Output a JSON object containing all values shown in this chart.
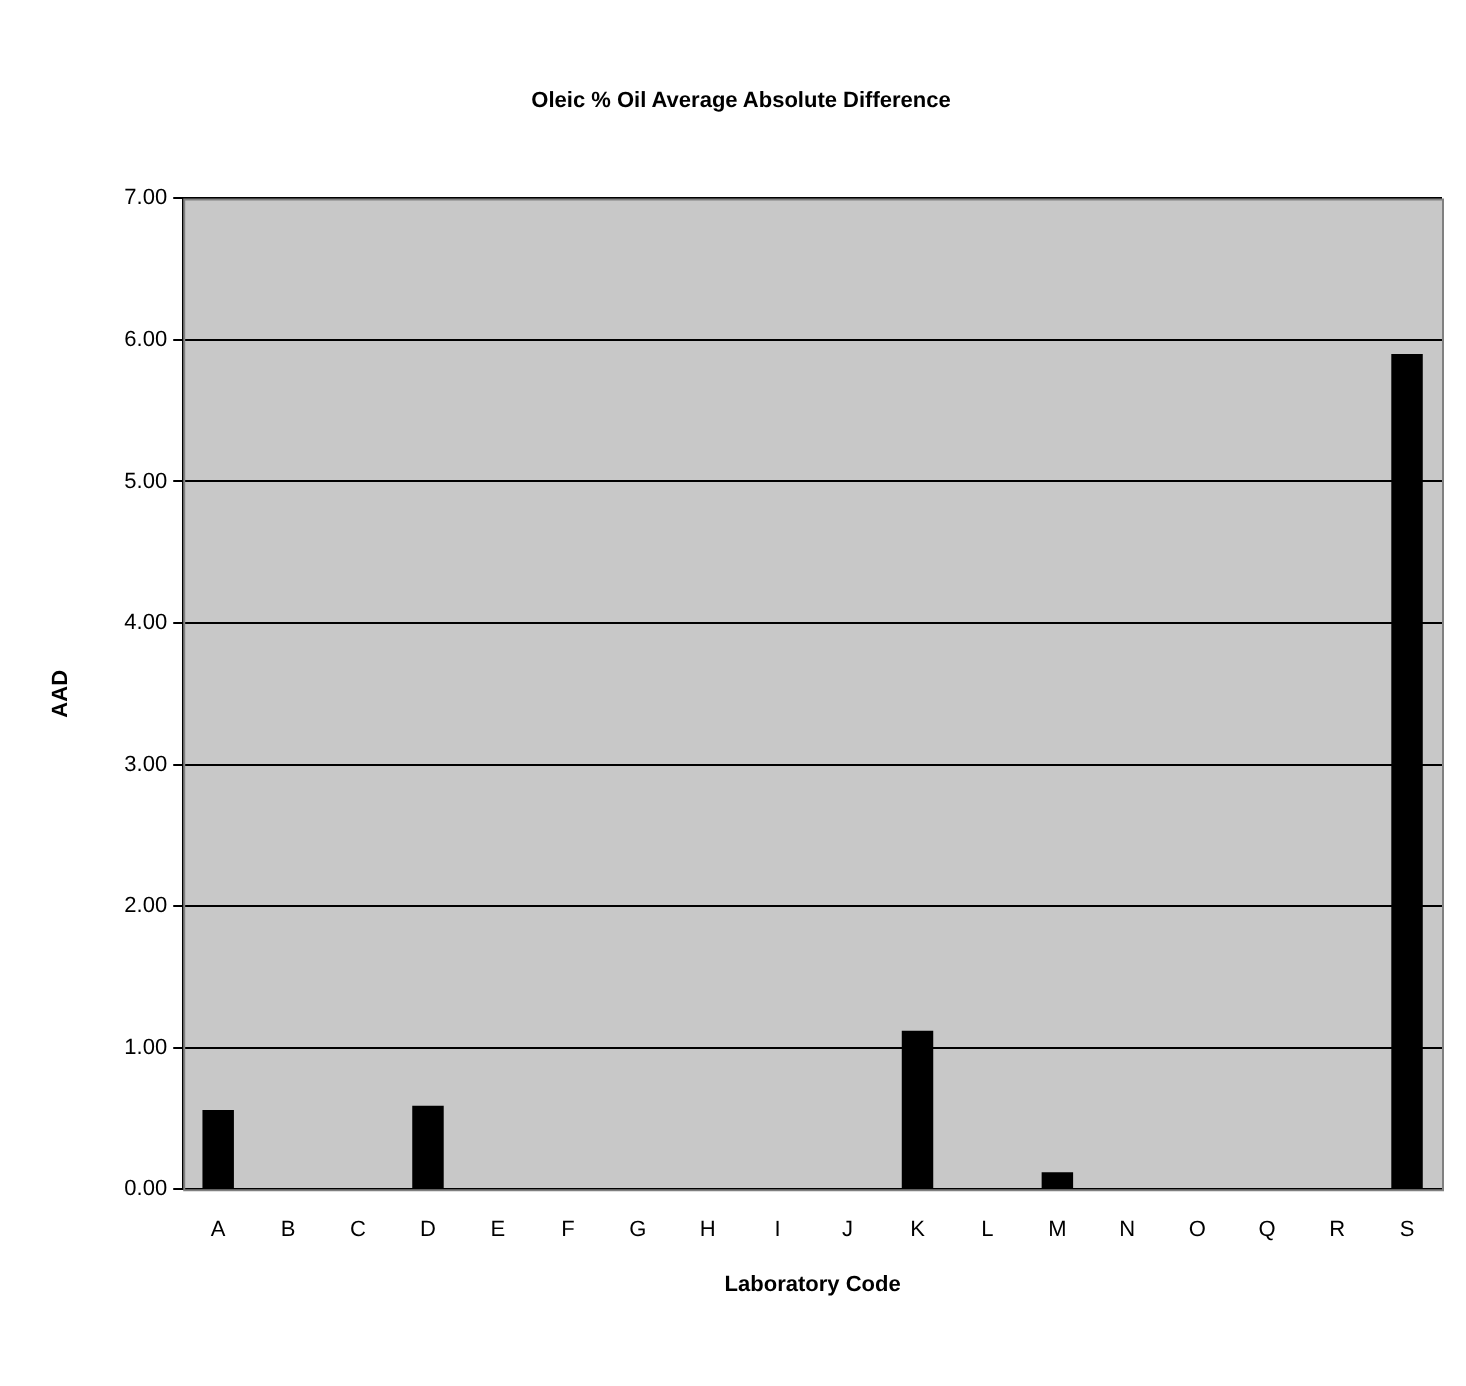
{
  "chart_data": {
    "type": "bar",
    "title": "Oleic % Oil Average Absolute Difference",
    "xlabel": "Laboratory Code",
    "ylabel": "AAD",
    "categories": [
      "A",
      "B",
      "C",
      "D",
      "E",
      "F",
      "G",
      "H",
      "I",
      "J",
      "K",
      "L",
      "M",
      "N",
      "O",
      "Q",
      "R",
      "S"
    ],
    "values": [
      0.56,
      0,
      0,
      0.59,
      0,
      0,
      0,
      0,
      0,
      0,
      1.12,
      0,
      0.12,
      0,
      0,
      0,
      0,
      5.9
    ],
    "color": "#000000",
    "ylim": [
      0,
      7
    ],
    "yticks": [
      {
        "value": 0,
        "label": "0.00"
      },
      {
        "value": 1,
        "label": "1.00"
      },
      {
        "value": 2,
        "label": "2.00"
      },
      {
        "value": 3,
        "label": "3.00"
      },
      {
        "value": 4,
        "label": "4.00"
      },
      {
        "value": 5,
        "label": "5.00"
      },
      {
        "value": 6,
        "label": "6.00"
      },
      {
        "value": 7,
        "label": "7.00"
      }
    ],
    "grid": "y",
    "legend": false
  }
}
